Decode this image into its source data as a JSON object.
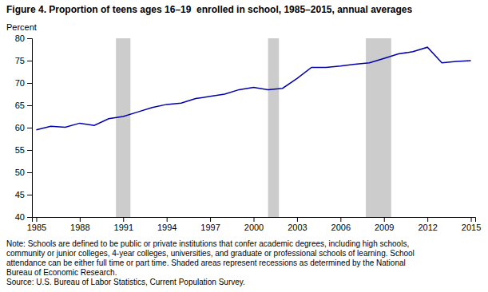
{
  "chart_data": {
    "type": "line",
    "title": "Figure 4. Proportion of teens ages 16–19  enrolled in school, 1985–2015, annual averages",
    "y_label": "Percent",
    "x": [
      1985,
      1986,
      1987,
      1988,
      1989,
      1990,
      1991,
      1992,
      1993,
      1994,
      1995,
      1996,
      1997,
      1998,
      1999,
      2000,
      2001,
      2002,
      2003,
      2004,
      2005,
      2006,
      2007,
      2008,
      2009,
      2010,
      2011,
      2012,
      2013,
      2014,
      2015
    ],
    "values": [
      59.5,
      60.3,
      60.1,
      61.0,
      60.5,
      62.0,
      62.5,
      63.5,
      64.5,
      65.2,
      65.5,
      66.5,
      67.0,
      67.5,
      68.5,
      69.0,
      68.5,
      68.8,
      71.0,
      73.5,
      73.5,
      73.8,
      74.2,
      74.5,
      75.5,
      76.5,
      77.0,
      78.0,
      74.5,
      74.8,
      75.0
    ],
    "color": "#0000AA",
    "recession_bands": {
      "color": "#CCCCCC",
      "ranges": [
        [
          1990.5,
          1991.5
        ],
        [
          2001.0,
          2001.75
        ],
        [
          2007.75,
          2009.5
        ]
      ]
    },
    "xlim": [
      1984.7,
      2015.3
    ],
    "xticks": [
      1985,
      1988,
      1991,
      1994,
      1997,
      2000,
      2003,
      2006,
      2009,
      2012,
      2015
    ],
    "ylim": [
      40,
      80
    ],
    "yticks": [
      40,
      45,
      50,
      55,
      60,
      65,
      70,
      75,
      80
    ],
    "grid": false,
    "annotations": [
      "Note: Schools are defined to be public or private institutions that confer academic degrees, including high schools,",
      "community or junior colleges, 4-year colleges, universities, and graduate or professional schools of learning. School",
      "attendance can be either full time or part time. Shaded areas represent recessions as determined by the National",
      "Bureau of Economic Research.",
      "Source: U.S. Bureau of Labor Statistics, Current Population Survey."
    ]
  }
}
